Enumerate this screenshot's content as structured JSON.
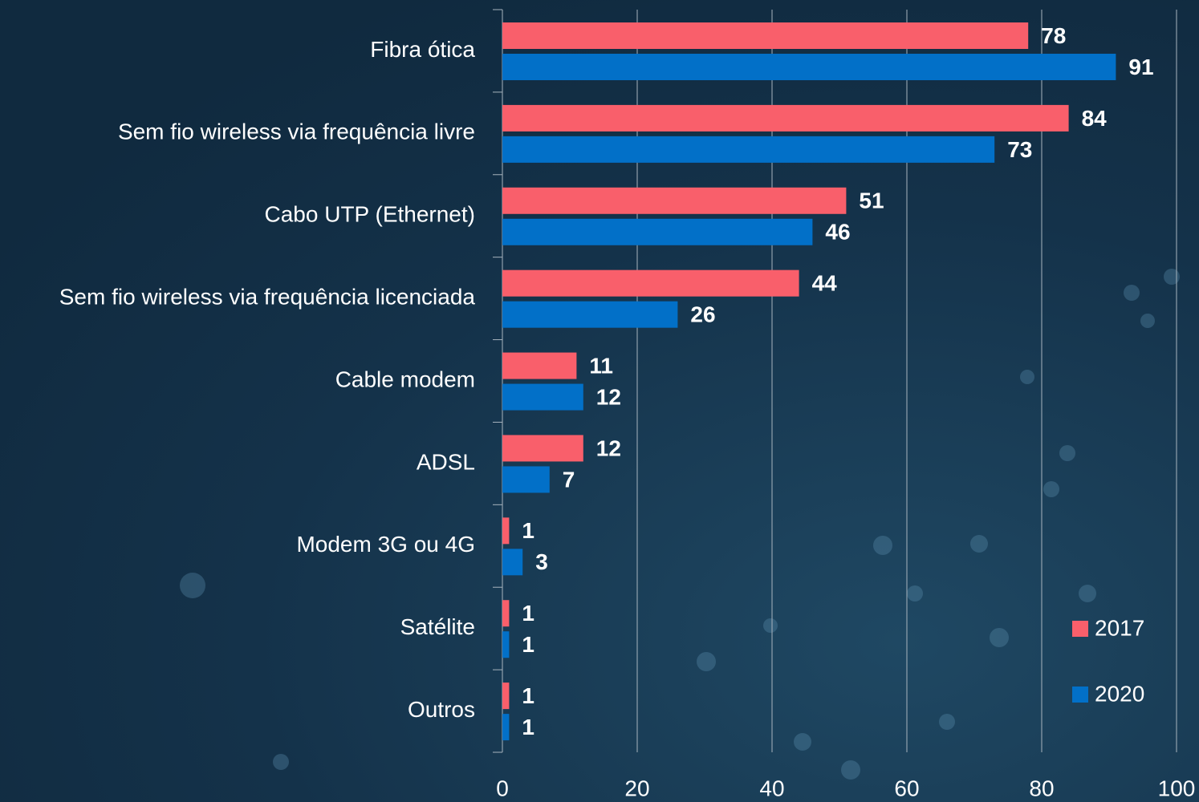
{
  "chart_data": {
    "type": "bar",
    "orientation": "horizontal",
    "categories": [
      "Fibra ótica",
      "Sem fio wireless via frequência livre",
      "Cabo UTP (Ethernet)",
      "Sem fio wireless via frequência licenciada",
      "Cable modem",
      "ADSL",
      "Modem 3G ou 4G",
      "Satélite",
      "Outros"
    ],
    "series": [
      {
        "name": "2017",
        "color": "#f95f6b",
        "values": [
          78,
          84,
          51,
          44,
          11,
          12,
          1,
          1,
          1
        ]
      },
      {
        "name": "2020",
        "color": "#0270c8",
        "values": [
          91,
          73,
          46,
          26,
          12,
          7,
          3,
          1,
          1
        ]
      }
    ],
    "xlim": [
      0,
      100
    ],
    "xticks": [
      0,
      20,
      40,
      60,
      80,
      100
    ],
    "grid": true,
    "legend": "lower right"
  }
}
